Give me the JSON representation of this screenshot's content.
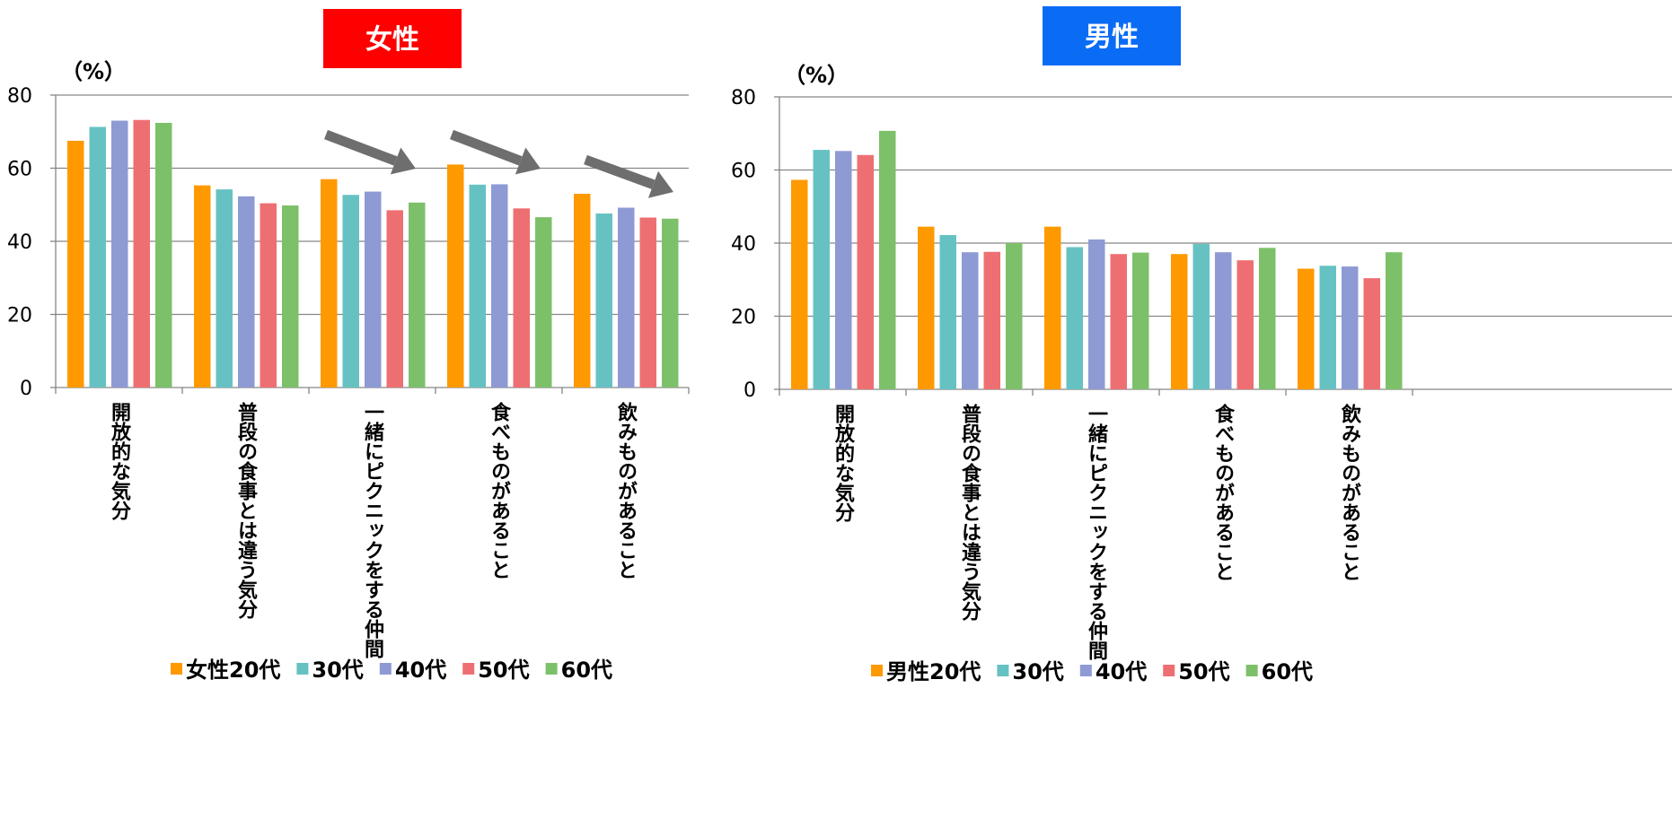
{
  "chart_data": [
    {
      "type": "bar",
      "title": "女性",
      "title_color": "#ff0000",
      "ylabel": "（%）",
      "ylim": [
        0,
        80
      ],
      "yticks": [
        0,
        20,
        40,
        60,
        80
      ],
      "grid": true,
      "legend_position": "bottom",
      "categories": [
        "開放的な気分",
        "普段の食事とは違う気分",
        "一緒にピクニックをする仲間",
        "食べものがあること",
        "飲みものがあること"
      ],
      "series": [
        {
          "name": "女性20代",
          "color": "#ff9900",
          "values": [
            67.5,
            55.3,
            57.0,
            61.0,
            53.0
          ]
        },
        {
          "name": "30代",
          "color": "#66c2c2",
          "values": [
            71.3,
            54.2,
            52.7,
            55.5,
            47.6
          ]
        },
        {
          "name": "40代",
          "color": "#8e9ad4",
          "values": [
            73.0,
            52.3,
            53.6,
            55.6,
            49.2
          ]
        },
        {
          "name": "50代",
          "color": "#ee6f72",
          "values": [
            73.2,
            50.4,
            48.5,
            49.0,
            46.5
          ]
        },
        {
          "name": "60代",
          "color": "#7dc06a",
          "values": [
            72.4,
            49.8,
            50.6,
            46.6,
            46.2
          ]
        }
      ]
    },
    {
      "type": "bar",
      "title": "男性",
      "title_color": "#0a6cf5",
      "ylabel": "（%）",
      "ylim": [
        0,
        80
      ],
      "yticks": [
        0,
        20,
        40,
        60,
        80
      ],
      "grid": true,
      "legend_position": "bottom",
      "categories": [
        "開放的な気分",
        "普段の食事とは違う気分",
        "一緒にピクニックをする仲間",
        "食べものがあること",
        "飲みものがあること"
      ],
      "series": [
        {
          "name": "男性20代",
          "color": "#ff9900",
          "values": [
            57.3,
            44.5,
            44.5,
            37.0,
            33.0
          ]
        },
        {
          "name": "30代",
          "color": "#66c2c2",
          "values": [
            65.5,
            42.2,
            38.9,
            39.8,
            33.8
          ]
        },
        {
          "name": "40代",
          "color": "#8e9ad4",
          "values": [
            65.2,
            37.5,
            41.0,
            37.5,
            33.6
          ]
        },
        {
          "name": "50代",
          "color": "#ee6f72",
          "values": [
            64.1,
            37.6,
            37.0,
            35.3,
            30.4
          ]
        },
        {
          "name": "60代",
          "color": "#7dc06a",
          "values": [
            70.7,
            40.0,
            37.4,
            38.7,
            37.5
          ]
        }
      ]
    }
  ]
}
